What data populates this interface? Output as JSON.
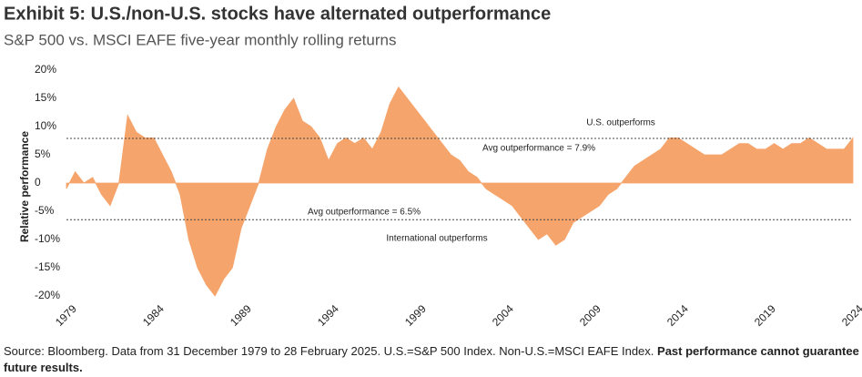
{
  "chart_data": {
    "type": "area",
    "title": "Exhibit 5: U.S./non-U.S. stocks have alternated outperformance",
    "subtitle": "S&P 500 vs. MSCI EAFE five-year monthly rolling returns",
    "y_label": "Relative performance",
    "source": "Source: Bloomberg. Data from 31 December 1979 to 28 February 2025. U.S.=S&P 500 Index. Non-U.S.=MSCI EAFE Index.",
    "source_bold": "Past performance cannot guarantee future results.",
    "color": "#f5a46c",
    "x": [
      1979,
      1979.5,
      1980,
      1980.5,
      1981,
      1981.5,
      1982,
      1982.5,
      1983,
      1983.5,
      1984,
      1984.5,
      1985,
      1985.5,
      1986,
      1986.5,
      1987,
      1987.5,
      1988,
      1988.5,
      1989,
      1989.5,
      1990,
      1990.5,
      1991,
      1991.5,
      1992,
      1992.5,
      1993,
      1993.5,
      1994,
      1994.5,
      1995,
      1995.5,
      1996,
      1996.5,
      1997,
      1997.5,
      1998,
      1998.5,
      1999,
      1999.5,
      2000,
      2000.5,
      2001,
      2001.5,
      2002,
      2002.5,
      2003,
      2003.5,
      2004,
      2004.5,
      2005,
      2005.5,
      2006,
      2006.5,
      2007,
      2007.5,
      2008,
      2008.5,
      2009,
      2009.5,
      2010,
      2010.5,
      2011,
      2011.5,
      2012,
      2012.5,
      2013,
      2013.5,
      2014,
      2014.5,
      2015,
      2015.5,
      2016,
      2016.5,
      2017,
      2017.5,
      2018,
      2018.5,
      2019,
      2019.5,
      2020,
      2020.5,
      2021,
      2021.5,
      2022,
      2022.5,
      2023,
      2023.5,
      2024
    ],
    "values": [
      -1,
      2,
      0,
      1,
      -2,
      -4,
      0,
      12,
      9,
      8,
      8,
      5,
      2,
      -2,
      -10,
      -15,
      -18,
      -20,
      -17,
      -15,
      -8,
      -4,
      0,
      6,
      10,
      13,
      15,
      11,
      10,
      8,
      4,
      7,
      8,
      7,
      8,
      6,
      9,
      14,
      17,
      15,
      13,
      11,
      9,
      7,
      5,
      4,
      2,
      1,
      -1,
      -2,
      -3,
      -4,
      -6,
      -8,
      -10,
      -9,
      -11,
      -10,
      -7,
      -6,
      -5,
      -4,
      -2,
      -1,
      1,
      3,
      4,
      5,
      6,
      8,
      8,
      7,
      6,
      5,
      5,
      5,
      6,
      7,
      7,
      6,
      6,
      7,
      6,
      7,
      7,
      8,
      7,
      6,
      6,
      6,
      8
    ],
    "xlim": [
      1979,
      2024
    ],
    "xticks": [
      1979,
      1984,
      1989,
      1994,
      1999,
      2004,
      2009,
      2014,
      2019,
      2024
    ],
    "ylim": [
      -20,
      20
    ],
    "yticks": [
      {
        "value": 20,
        "label": "20%"
      },
      {
        "value": 15,
        "label": "15%"
      },
      {
        "value": 10,
        "label": "10%"
      },
      {
        "value": 5,
        "label": "5%"
      },
      0,
      {
        "value": -5,
        "label": "-5%"
      },
      {
        "value": -10,
        "label": "-10%"
      },
      {
        "value": -15,
        "label": "-15%"
      },
      {
        "value": -20,
        "label": "-20%"
      }
    ],
    "reference_lines": [
      {
        "value": 7.9,
        "label": "Avg outperformance = 7.9%",
        "region": "U.S. outperforms"
      },
      {
        "value": -6.5,
        "label": "Avg outperformance = 6.5%",
        "region": "International outperforms"
      }
    ]
  }
}
